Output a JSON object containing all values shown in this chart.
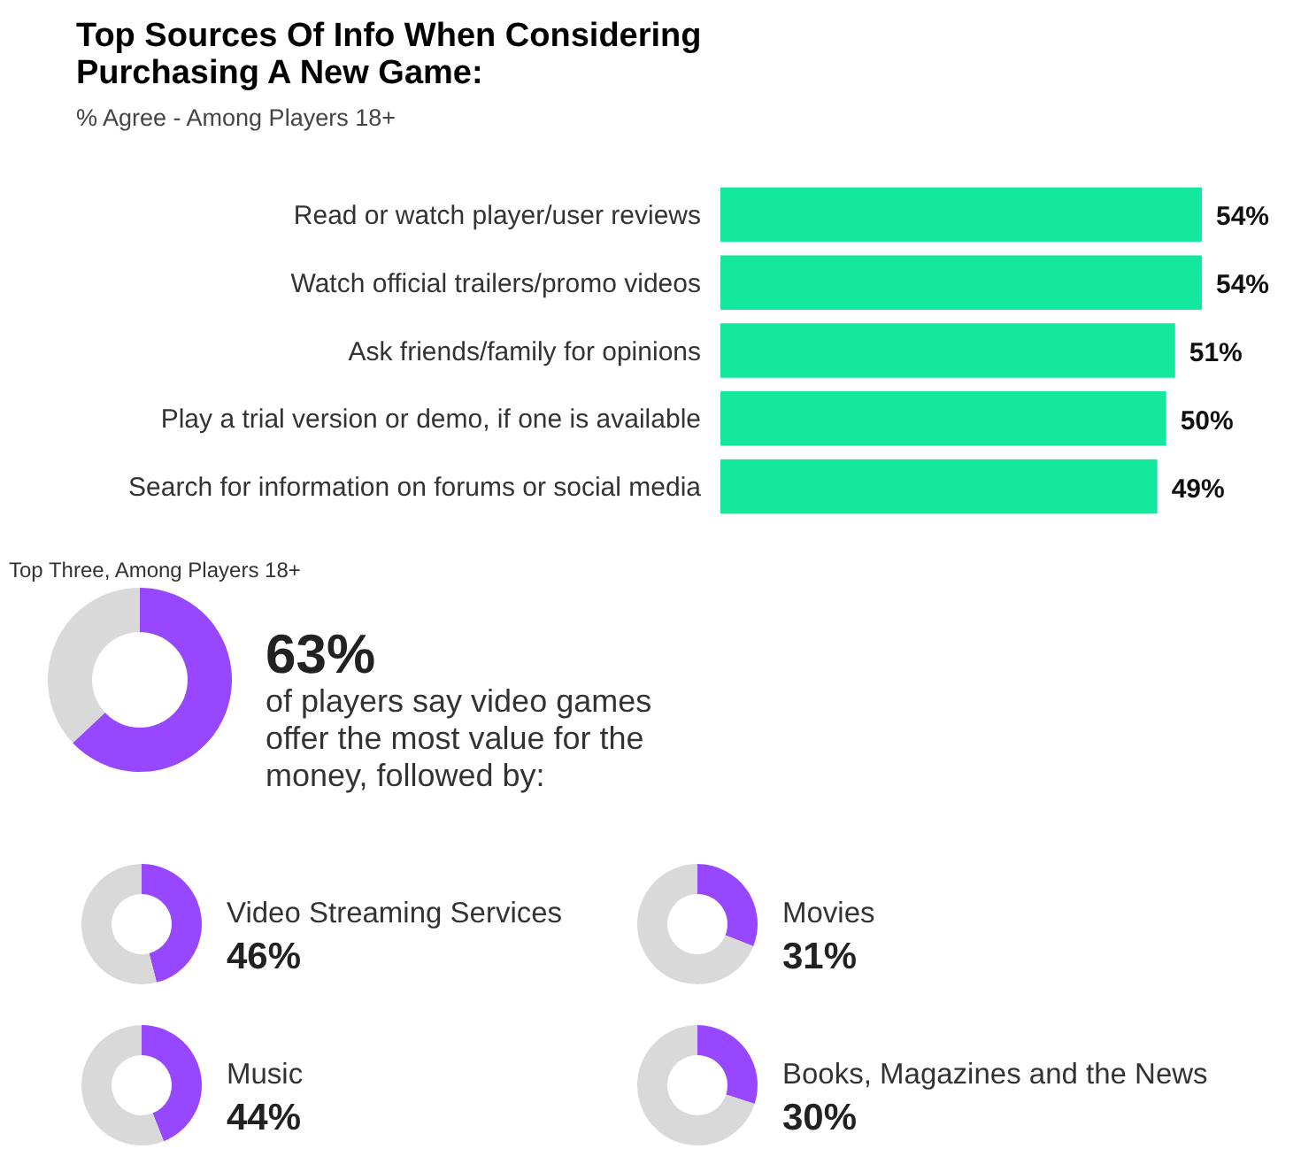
{
  "chart_data": [
    {
      "type": "bar",
      "orientation": "horizontal",
      "title": "Top Sources Of Info When Considering Purchasing A New Game:",
      "subtitle": "% Agree - Among Players 18+",
      "categories": [
        "Read or watch player/user reviews",
        "Watch official trailers/promo videos",
        "Ask friends/family for opinions",
        "Play a trial version or demo, if one is available",
        "Search for information on forums or social media"
      ],
      "values": [
        54,
        54,
        51,
        50,
        49
      ],
      "value_labels": [
        "54%",
        "54%",
        "51%",
        "50%",
        "49%"
      ],
      "color": "#13e89c",
      "tick_labels": "y"
    },
    {
      "type": "donut",
      "subtitle": "Top Three, Among Players 18+",
      "categories": [
        null,
        null
      ],
      "values": [
        63,
        37
      ],
      "colors": [
        "#9747ff",
        "#d9d9d9"
      ],
      "value_labels": [
        "63%",
        null
      ],
      "annotations": [
        "of players say video games offer the most value for the money, followed by:"
      ]
    },
    {
      "type": "donut",
      "categories": [
        "Video Streaming Services",
        null
      ],
      "values": [
        46,
        54
      ],
      "colors": [
        "#9747ff",
        "#d9d9d9"
      ],
      "value_labels": [
        "46%",
        null
      ]
    },
    {
      "type": "donut",
      "categories": [
        "Movies",
        null
      ],
      "values": [
        31,
        69
      ],
      "colors": [
        "#9747ff",
        "#d9d9d9"
      ],
      "value_labels": [
        "31%",
        null
      ]
    },
    {
      "type": "donut",
      "categories": [
        "Music",
        null
      ],
      "values": [
        44,
        56
      ],
      "colors": [
        "#9747ff",
        "#d9d9d9"
      ],
      "value_labels": [
        "44%",
        null
      ]
    },
    {
      "type": "donut",
      "categories": [
        "Books, Magazines and the News",
        null
      ],
      "values": [
        30,
        70
      ],
      "colors": [
        "#9747ff",
        "#d9d9d9"
      ],
      "value_labels": [
        "30%",
        null
      ]
    }
  ]
}
